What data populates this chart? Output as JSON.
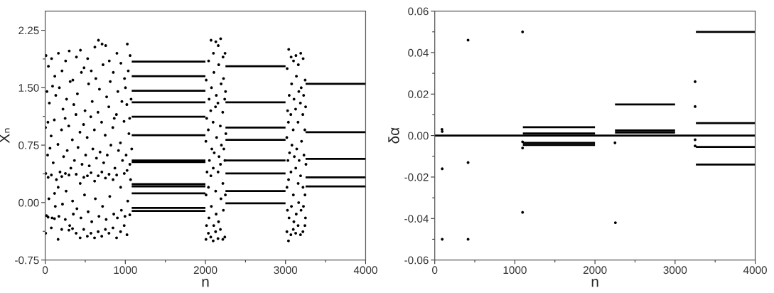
{
  "chart_data": [
    {
      "type": "scatter",
      "xlabel": "n",
      "ylabel": "Xₙ",
      "marker": "circle",
      "line_style": "solid",
      "xlim": [
        0,
        4000
      ],
      "xticks": [
        0,
        {
          "value": 500,
          "label": null
        },
        1000,
        {
          "value": 1500,
          "label": null
        },
        2000,
        {
          "value": 2500,
          "label": null
        },
        3000,
        {
          "value": 3500,
          "label": null
        },
        4000
      ],
      "ylim": [
        -0.75,
        2.5
      ],
      "yticks": [
        {
          "value": -0.75,
          "label": "-0.75"
        },
        {
          "value": -0.375,
          "label": null
        },
        {
          "value": 0,
          "label": "0.00"
        },
        {
          "value": 0.375,
          "label": null
        },
        {
          "value": 0.75,
          "label": "0.75"
        },
        {
          "value": 1.125,
          "label": null
        },
        {
          "value": 1.5,
          "label": "1.50"
        },
        {
          "value": 1.875,
          "label": null
        },
        {
          "value": 2.25,
          "label": "2.25"
        }
      ],
      "series": [
        {
          "color": "#000000",
          "x": [
            10,
            22,
            4,
            30,
            7,
            16,
            6,
            40,
            52,
            34,
            60,
            37,
            46,
            36,
            80,
            92,
            74,
            100,
            77,
            86,
            76,
            120,
            132,
            114,
            140,
            117,
            126,
            116,
            165,
            177,
            159,
            185,
            162,
            171,
            161,
            210,
            222,
            204,
            230,
            207,
            216,
            206,
            255,
            267,
            249,
            275,
            252,
            261,
            251,
            300,
            312,
            294,
            320,
            297,
            306,
            296,
            345,
            357,
            339,
            365,
            342,
            351,
            341,
            390,
            402,
            384,
            410,
            387,
            396,
            386,
            440,
            452,
            434,
            460,
            437,
            446,
            436,
            485,
            497,
            479,
            505,
            482,
            491,
            481,
            530,
            542,
            524,
            550,
            527,
            536,
            526,
            575,
            587,
            569,
            595,
            572,
            581,
            571,
            620,
            632,
            614,
            640,
            617,
            626,
            616,
            665,
            677,
            659,
            685,
            662,
            671,
            661,
            710,
            722,
            704,
            730,
            707,
            716,
            706,
            755,
            767,
            749,
            775,
            752,
            761,
            751,
            800,
            812,
            794,
            820,
            797,
            806,
            796,
            850,
            862,
            844,
            870,
            847,
            856,
            846,
            895,
            907,
            889,
            915,
            892,
            901,
            891,
            945,
            957,
            939,
            965,
            942,
            951,
            941,
            990,
            1002,
            984,
            1010,
            987,
            996,
            986,
            1025,
            1037,
            1019,
            1045,
            1022,
            1031,
            1021,
            1060,
            1072,
            1054,
            1080,
            1057,
            1066,
            1056
          ],
          "values": [
            1.92,
            1.45,
            0.98,
            0.62,
            0.38,
            -0.17,
            -0.4,
            1.78,
            1.3,
            1.05,
            0.71,
            0.33,
            0.05,
            -0.19,
            1.88,
            1.52,
            0.87,
            0.52,
            0.36,
            -0.2,
            -0.33,
            1.65,
            1.4,
            1.08,
            0.3,
            0.12,
            -0.05,
            -0.21,
            1.95,
            1.5,
            0.76,
            0.4,
            0.2,
            -0.18,
            -0.48,
            1.72,
            1.22,
            0.95,
            0.6,
            0.34,
            -0.02,
            -0.35,
            1.85,
            1.35,
            1.1,
            0.68,
            0.38,
            0.15,
            -0.22,
            1.98,
            1.58,
            1.0,
            0.45,
            0.36,
            -0.3,
            -0.36,
            1.6,
            1.28,
            0.82,
            0.55,
            0.02,
            -0.15,
            -0.34,
            1.9,
            1.42,
            1.15,
            0.72,
            0.37,
            -0.08,
            -0.4,
            1.99,
            1.7,
            0.92,
            0.5,
            0.25,
            -0.2,
            -0.46,
            1.76,
            1.2,
            1.02,
            0.62,
            0.33,
            0.1,
            -0.35,
            1.88,
            1.55,
            0.85,
            0.48,
            0.35,
            -0.12,
            -0.44,
            1.72,
            1.32,
            1.12,
            0.7,
            0.39,
            -0.25,
            -0.4,
            2.03,
            1.62,
            0.95,
            0.58,
            0.28,
            0.05,
            -0.46,
            2.12,
            1.48,
            1.18,
            0.66,
            0.35,
            -0.18,
            -0.38,
            2.07,
            1.8,
            1.05,
            0.52,
            0.4,
            -0.05,
            -0.44,
            2.05,
            1.38,
            0.88,
            0.62,
            0.32,
            -0.22,
            -0.35,
            1.85,
            1.58,
            1.25,
            0.75,
            0.37,
            0.08,
            -0.4,
            1.7,
            1.1,
            0.98,
            0.45,
            0.3,
            -0.15,
            -0.33,
            1.95,
            1.45,
            1.15,
            0.68,
            0.36,
            -0.2,
            -0.46,
            1.82,
            1.32,
            0.78,
            0.55,
            0.2,
            -0.1,
            -0.38,
            1.62,
            1.5,
            1.06,
            0.62,
            0.38,
            -0.18,
            -0.3,
            2.07,
            1.72,
            1.28,
            0.9,
            0.42,
            0.02,
            -0.42,
            1.92,
            1.35,
            1.1,
            0.7,
            0.5,
            0.3,
            -0.16
          ]
        },
        {
          "color": "#000000",
          "x": [
            2010,
            2016,
            2006,
            2020,
            2008,
            2014,
            2007,
            2040,
            2046,
            2036,
            2050,
            2038,
            2044,
            2037,
            2070,
            2076,
            2066,
            2080,
            2068,
            2074,
            2067,
            2100,
            2106,
            2096,
            2110,
            2098,
            2104,
            2097,
            2130,
            2136,
            2126,
            2140,
            2128,
            2134,
            2127,
            2160,
            2166,
            2156,
            2170,
            2158,
            2164,
            2157,
            2190,
            2196,
            2186,
            2200,
            2188,
            2194,
            2187,
            2220,
            2226,
            2216,
            2230,
            2218,
            2224,
            2217,
            2245,
            2251,
            2241,
            2255,
            2243,
            2249,
            2242
          ],
          "values": [
            1.6,
            1.1,
            0.8,
            0.4,
            0.1,
            -0.3,
            -0.48,
            1.85,
            1.35,
            0.95,
            0.55,
            0.2,
            -0.2,
            -0.4,
            2.12,
            1.5,
            1.2,
            0.7,
            0.35,
            -0.05,
            -0.45,
            1.95,
            1.7,
            1.05,
            0.65,
            0.45,
            -0.3,
            -0.5,
            2.1,
            1.4,
            1.25,
            0.85,
            0.15,
            -0.15,
            -0.38,
            2.05,
            1.8,
            1.3,
            0.6,
            0.4,
            -0.25,
            -0.47,
            2.14,
            1.55,
            1.0,
            0.75,
            0.5,
            0.05,
            -0.35,
            1.9,
            1.62,
            1.18,
            0.7,
            0.25,
            -0.1,
            -0.48,
            1.95,
            1.45,
            1.35,
            0.9,
            0.55,
            0.1,
            -0.45
          ]
        },
        {
          "color": "#000000",
          "x": [
            3020,
            3026,
            3016,
            3030,
            3018,
            3024,
            3017,
            3040,
            3046,
            3036,
            3050,
            3038,
            3044,
            3037,
            3070,
            3076,
            3066,
            3080,
            3068,
            3074,
            3067,
            3100,
            3106,
            3096,
            3110,
            3098,
            3104,
            3097,
            3130,
            3136,
            3126,
            3140,
            3128,
            3134,
            3127,
            3160,
            3166,
            3156,
            3170,
            3158,
            3164,
            3157,
            3190,
            3196,
            3186,
            3200,
            3188,
            3194,
            3187,
            3220,
            3226,
            3216,
            3230,
            3218,
            3224,
            3217,
            3245,
            3251,
            3241,
            3255,
            3243,
            3249,
            3242
          ],
          "values": [
            1.75,
            1.2,
            0.85,
            0.55,
            0.2,
            -0.1,
            -0.38,
            2.0,
            1.4,
            1.05,
            0.65,
            0.3,
            -0.2,
            -0.5,
            1.9,
            1.55,
            1.15,
            0.75,
            0.4,
            -0.05,
            -0.42,
            1.85,
            1.35,
            0.95,
            0.6,
            0.1,
            -0.25,
            -0.35,
            1.92,
            1.65,
            1.22,
            0.7,
            0.45,
            -0.15,
            -0.4,
            1.8,
            1.45,
            1.05,
            0.55,
            0.25,
            0.0,
            -0.3,
            1.95,
            1.5,
            1.3,
            0.8,
            0.35,
            -0.1,
            -0.42,
            1.88,
            1.4,
            1.15,
            0.62,
            0.2,
            -0.05,
            -0.38,
            1.6,
            1.25,
            0.95,
            0.5,
            0.1,
            -0.2,
            -0.3
          ]
        },
        {
          "type": "line",
          "marker": "none",
          "color": "#000000",
          "x": [
            1080,
            2000
          ],
          "values": [
            1.84,
            1.84
          ]
        },
        {
          "type": "line",
          "marker": "none",
          "color": "#000000",
          "x": [
            1080,
            2000
          ],
          "values": [
            1.65,
            1.65
          ]
        },
        {
          "type": "line",
          "marker": "none",
          "color": "#000000",
          "x": [
            1080,
            2000
          ],
          "values": [
            1.46,
            1.46
          ]
        },
        {
          "type": "line",
          "marker": "none",
          "color": "#000000",
          "x": [
            1080,
            2000
          ],
          "values": [
            1.31,
            1.31
          ]
        },
        {
          "type": "line",
          "marker": "none",
          "color": "#000000",
          "x": [
            1080,
            2000
          ],
          "values": [
            1.12,
            1.12
          ]
        },
        {
          "type": "line",
          "marker": "none",
          "color": "#000000",
          "x": [
            1080,
            2000
          ],
          "values": [
            0.88,
            0.88
          ]
        },
        {
          "type": "line",
          "marker": "none",
          "color": "#000000",
          "x": [
            1080,
            2000
          ],
          "values": [
            0.55,
            0.55
          ]
        },
        {
          "type": "line",
          "marker": "none",
          "color": "#000000",
          "x": [
            1080,
            2000
          ],
          "values": [
            0.53,
            0.53
          ]
        },
        {
          "type": "line",
          "marker": "none",
          "color": "#000000",
          "x": [
            1080,
            2000
          ],
          "values": [
            0.24,
            0.24
          ]
        },
        {
          "type": "line",
          "marker": "none",
          "color": "#000000",
          "x": [
            1080,
            2000
          ],
          "values": [
            0.21,
            0.21
          ]
        },
        {
          "type": "line",
          "marker": "none",
          "color": "#000000",
          "x": [
            1080,
            2000
          ],
          "values": [
            0.12,
            0.12
          ]
        },
        {
          "type": "line",
          "marker": "none",
          "color": "#000000",
          "x": [
            1080,
            2000
          ],
          "values": [
            -0.07,
            -0.07
          ]
        },
        {
          "type": "line",
          "marker": "none",
          "color": "#000000",
          "x": [
            1080,
            2000
          ],
          "values": [
            -0.11,
            -0.11
          ]
        },
        {
          "type": "line",
          "marker": "none",
          "color": "#000000",
          "x": [
            2250,
            3000
          ],
          "values": [
            1.78,
            1.78
          ]
        },
        {
          "type": "line",
          "marker": "none",
          "color": "#000000",
          "x": [
            2250,
            3000
          ],
          "values": [
            1.31,
            1.31
          ]
        },
        {
          "type": "line",
          "marker": "none",
          "color": "#000000",
          "x": [
            2250,
            3000
          ],
          "values": [
            0.98,
            0.98
          ]
        },
        {
          "type": "line",
          "marker": "none",
          "color": "#000000",
          "x": [
            2250,
            3000
          ],
          "values": [
            0.82,
            0.82
          ]
        },
        {
          "type": "line",
          "marker": "none",
          "color": "#000000",
          "x": [
            2250,
            3000
          ],
          "values": [
            0.55,
            0.55
          ]
        },
        {
          "type": "line",
          "marker": "none",
          "color": "#000000",
          "x": [
            2250,
            3000
          ],
          "values": [
            0.38,
            0.38
          ]
        },
        {
          "type": "line",
          "marker": "none",
          "color": "#000000",
          "x": [
            2250,
            3000
          ],
          "values": [
            0.15,
            0.15
          ]
        },
        {
          "type": "line",
          "marker": "none",
          "color": "#000000",
          "x": [
            2250,
            3000
          ],
          "values": [
            -0.01,
            -0.01
          ]
        },
        {
          "type": "line",
          "marker": "none",
          "color": "#000000",
          "x": [
            3250,
            4000
          ],
          "values": [
            1.55,
            1.55
          ]
        },
        {
          "type": "line",
          "marker": "none",
          "color": "#000000",
          "x": [
            3250,
            4000
          ],
          "values": [
            0.92,
            0.92
          ]
        },
        {
          "type": "line",
          "marker": "none",
          "color": "#000000",
          "x": [
            3250,
            4000
          ],
          "values": [
            0.57,
            0.57
          ]
        },
        {
          "type": "line",
          "marker": "none",
          "color": "#000000",
          "x": [
            3250,
            4000
          ],
          "values": [
            0.33,
            0.33
          ]
        },
        {
          "type": "line",
          "marker": "none",
          "color": "#000000",
          "x": [
            3250,
            4000
          ],
          "values": [
            0.21,
            0.21
          ]
        }
      ]
    },
    {
      "type": "scatter",
      "xlabel": "n",
      "ylabel": "δα",
      "marker": "circle",
      "line_style": "solid",
      "xlim": [
        0,
        4000
      ],
      "xticks": [
        0,
        {
          "value": 500,
          "label": null
        },
        1000,
        {
          "value": 1500,
          "label": null
        },
        2000,
        {
          "value": 2500,
          "label": null
        },
        3000,
        {
          "value": 3500,
          "label": null
        },
        4000
      ],
      "ylim": [
        -0.06,
        0.06
      ],
      "yticks": [
        {
          "value": -0.06,
          "label": "-0.06"
        },
        {
          "value": -0.05,
          "label": null
        },
        {
          "value": -0.04,
          "label": "-0.04"
        },
        {
          "value": -0.03,
          "label": null
        },
        {
          "value": -0.02,
          "label": "-0.02"
        },
        {
          "value": -0.01,
          "label": null
        },
        {
          "value": 0,
          "label": "0.00"
        },
        {
          "value": 0.01,
          "label": null
        },
        {
          "value": 0.02,
          "label": "0.02"
        },
        {
          "value": 0.03,
          "label": null
        },
        {
          "value": 0.04,
          "label": "0.04"
        },
        {
          "value": 0.05,
          "label": null
        },
        {
          "value": 0.06,
          "label": "0.06"
        }
      ],
      "series": [
        {
          "color": "#000000",
          "x": [
            90,
            93,
            93,
            93,
            416,
            416,
            416,
            1096,
            1096,
            1096,
            1096,
            2250,
            2255,
            3250,
            3250,
            3250,
            3250
          ],
          "values": [
            0.003,
            0.002,
            -0.016,
            -0.05,
            0.046,
            -0.013,
            -0.05,
            0.05,
            -0.003,
            -0.006,
            -0.037,
            -0.0035,
            -0.042,
            0.026,
            0.014,
            -0.002,
            -0.005
          ]
        },
        {
          "type": "line",
          "marker": "none",
          "color": "#000000",
          "x": [
            0,
            4000
          ],
          "values": [
            0,
            0
          ]
        },
        {
          "type": "line",
          "marker": "none",
          "color": "#000000",
          "x": [
            1100,
            2000
          ],
          "values": [
            0.004,
            0.004
          ]
        },
        {
          "type": "line",
          "marker": "none",
          "color": "#000000",
          "x": [
            1100,
            2000
          ],
          "values": [
            0.001,
            0.001
          ]
        },
        {
          "type": "line",
          "marker": "none",
          "color": "#000000",
          "x": [
            1100,
            2000
          ],
          "values": [
            -0.0035,
            -0.0035
          ]
        },
        {
          "type": "line",
          "marker": "none",
          "color": "#000000",
          "x": [
            1100,
            2000
          ],
          "values": [
            -0.0045,
            -0.0045
          ]
        },
        {
          "type": "line",
          "marker": "none",
          "color": "#000000",
          "x": [
            2250,
            3000
          ],
          "values": [
            0.015,
            0.015
          ]
        },
        {
          "type": "line",
          "marker": "none",
          "color": "#000000",
          "x": [
            2250,
            3000
          ],
          "values": [
            0.0025,
            0.0025
          ]
        },
        {
          "type": "line",
          "marker": "none",
          "color": "#000000",
          "x": [
            2250,
            3000
          ],
          "values": [
            0.0015,
            0.0015
          ]
        },
        {
          "type": "line",
          "marker": "none",
          "color": "#000000",
          "x": [
            3260,
            4000
          ],
          "values": [
            0.05,
            0.05
          ]
        },
        {
          "type": "line",
          "marker": "none",
          "color": "#000000",
          "x": [
            3260,
            4000
          ],
          "values": [
            0.006,
            0.006
          ]
        },
        {
          "type": "line",
          "marker": "none",
          "color": "#000000",
          "x": [
            3260,
            4000
          ],
          "values": [
            -0.0055,
            -0.0055
          ]
        },
        {
          "type": "line",
          "marker": "none",
          "color": "#000000",
          "x": [
            3260,
            4000
          ],
          "values": [
            -0.014,
            -0.014
          ]
        }
      ]
    }
  ]
}
